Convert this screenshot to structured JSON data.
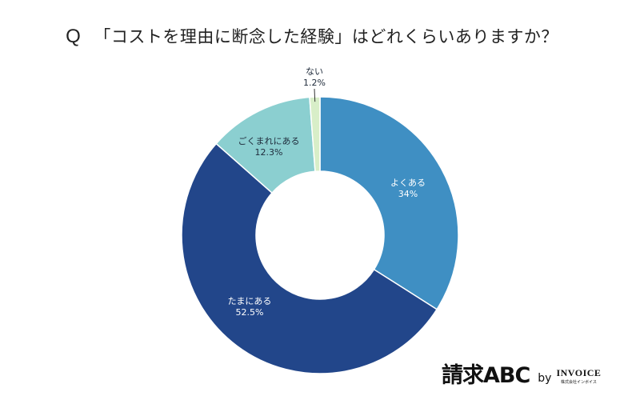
{
  "title": {
    "prefix": "Q",
    "text": "「コストを理由に断念した経験」はどれくらいありますか？"
  },
  "chart_data": {
    "type": "pie",
    "donut": true,
    "title": "「コストを理由に断念した経験」はどれくらいありますか？",
    "start": "top, clockwise",
    "slices": [
      {
        "label": "よくある",
        "value": 34,
        "display": "34%",
        "color": "#3f8fc3",
        "text_color": "#ffffff"
      },
      {
        "label": "たまにある",
        "value": 52.5,
        "display": "52.5%",
        "color": "#22468a",
        "text_color": "#ffffff"
      },
      {
        "label": "ごくまれにある",
        "value": 12.3,
        "display": "12.3%",
        "color": "#8bcfd0",
        "text_color": "#1e2a3a"
      },
      {
        "label": "ない",
        "value": 1.2,
        "display": "1.2%",
        "color": "#d8eec8",
        "text_color": "#1e2a3a"
      }
    ]
  },
  "logo": {
    "main": "請求ABC",
    "by": "by",
    "brand": "INVOICE",
    "brand_sub": "株式会社インボイス"
  }
}
